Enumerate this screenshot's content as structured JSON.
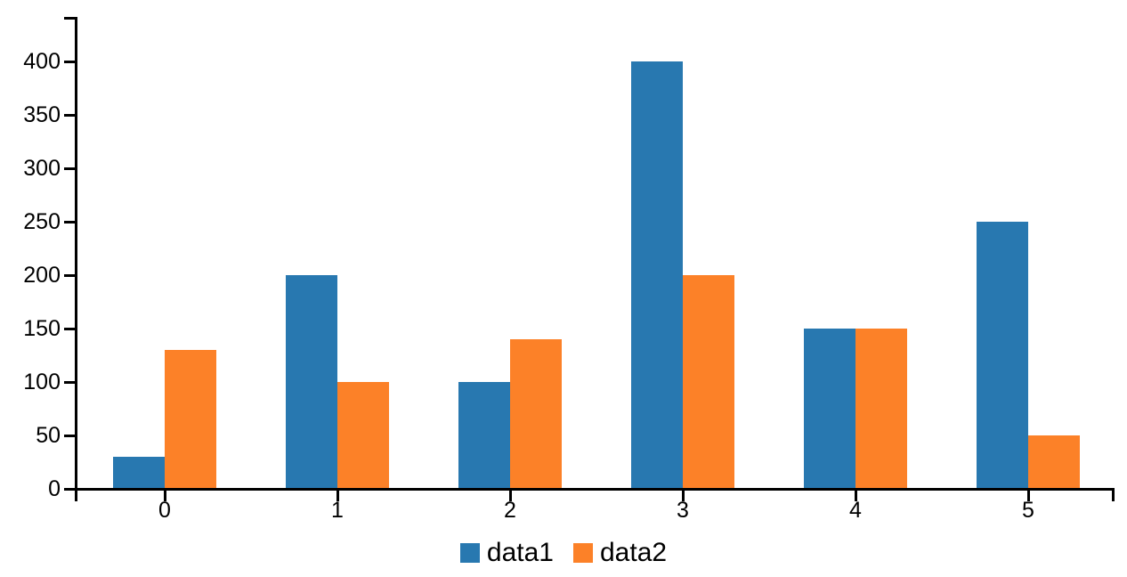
{
  "chart_data": {
    "type": "bar",
    "title": "",
    "xlabel": "",
    "ylabel": "",
    "categories": [
      "0",
      "1",
      "2",
      "3",
      "4",
      "5"
    ],
    "series": [
      {
        "name": "data1",
        "color": "#2878b0",
        "values": [
          30,
          200,
          100,
          400,
          150,
          250
        ]
      },
      {
        "name": "data2",
        "color": "#fc8128",
        "values": [
          130,
          100,
          140,
          200,
          150,
          50
        ]
      }
    ],
    "ylim": [
      0,
      440
    ],
    "yticks": [
      0,
      50,
      100,
      150,
      200,
      250,
      300,
      350,
      400
    ],
    "grid": false,
    "legend_position": "bottom-center"
  },
  "colors": {
    "background": "#ffffff",
    "axis": "#000000",
    "text": "#000000"
  }
}
